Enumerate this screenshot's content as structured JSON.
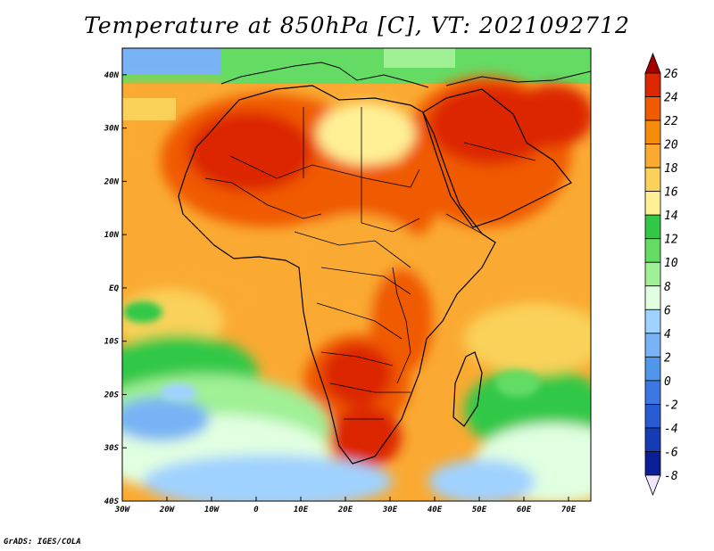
{
  "title": "Temperature at 850hPa [C], VT: 2021092712",
  "credit": "GrADS: IGES/COLA",
  "map": {
    "lat_labels": [
      "40N",
      "30N",
      "20N",
      "10N",
      "EQ",
      "10S",
      "20S",
      "30S",
      "40S"
    ],
    "lon_labels": [
      "30W",
      "20W",
      "10W",
      "0",
      "10E",
      "20E",
      "30E",
      "40E",
      "50E",
      "60E",
      "70E"
    ],
    "extent": {
      "lon_min": -30,
      "lon_max": 75,
      "lat_min": -40,
      "lat_max": 45
    }
  },
  "colorbar": {
    "levels": [
      "26",
      "24",
      "22",
      "20",
      "18",
      "16",
      "14",
      "12",
      "10",
      "8",
      "6",
      "4",
      "2",
      "0",
      "-2",
      "-4",
      "-6",
      "-8"
    ],
    "colors": [
      "#a50000",
      "#dc2800",
      "#f05a00",
      "#f58c0a",
      "#faaa32",
      "#fad25a",
      "#fff096",
      "#32c846",
      "#64dc64",
      "#a0f096",
      "#e1ffe1",
      "#a0d2ff",
      "#78b4f5",
      "#5096eb",
      "#3c78e1",
      "#285ad2",
      "#143cb4",
      "#0a1e96",
      "#f0e6ff"
    ]
  }
}
